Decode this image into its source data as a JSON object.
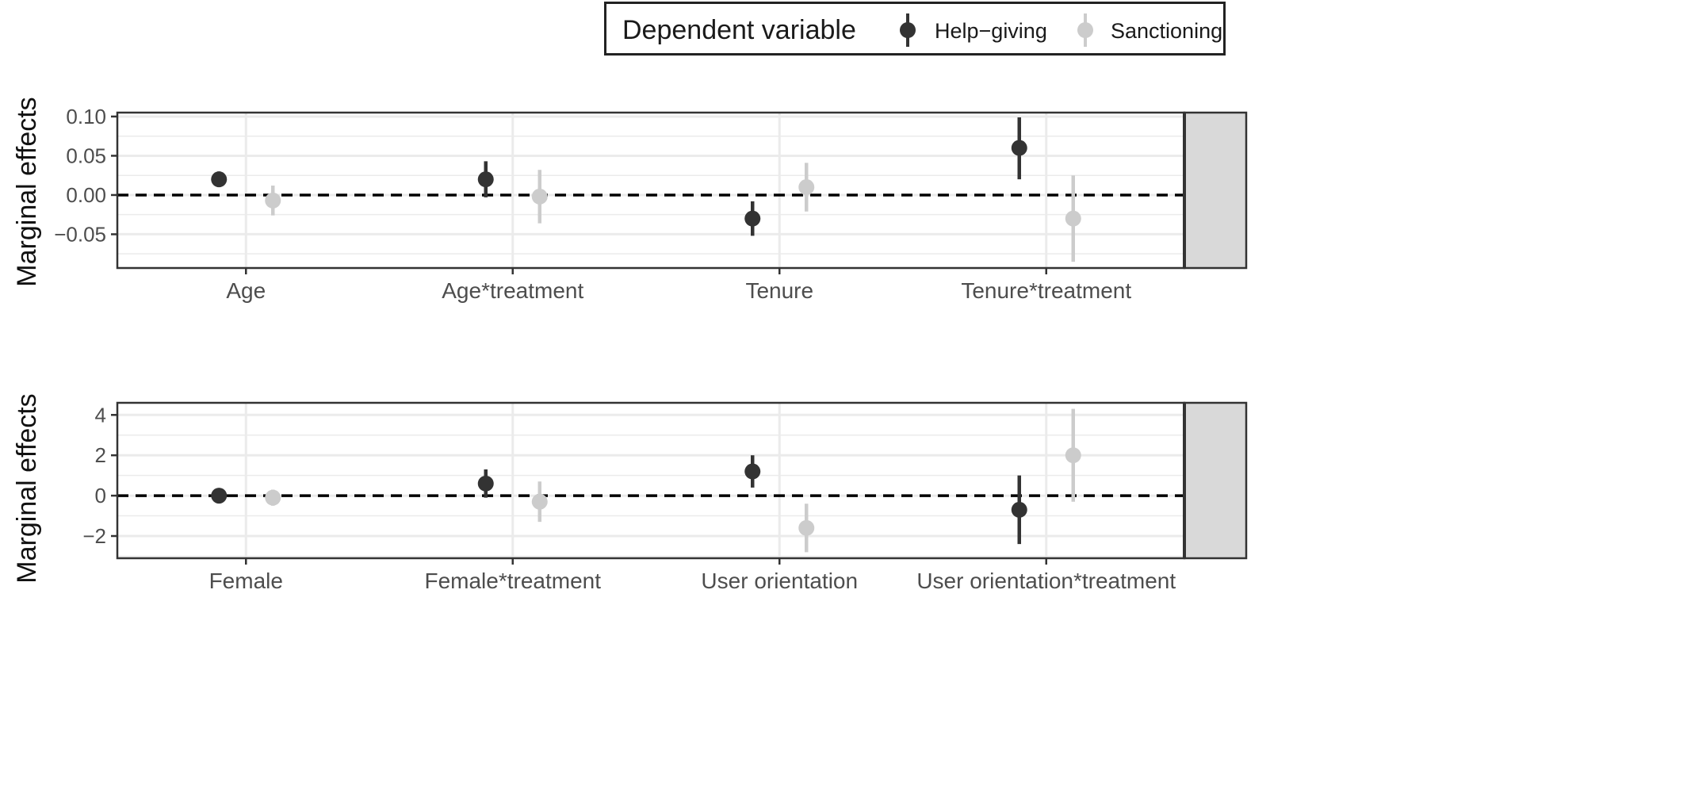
{
  "legend": {
    "title": "Dependent variable",
    "items": [
      {
        "label": "Help−giving",
        "color": "#333333"
      },
      {
        "label": "Sanctioning",
        "color": "#cccccc"
      }
    ]
  },
  "colors": {
    "help_giving": "#333333",
    "sanctioning": "#cccccc",
    "strip": "#d9d9d9",
    "grid": "#ebebeb",
    "refline": "#000000"
  },
  "chart_data": [
    {
      "type": "scatter",
      "ylabel": "Marginal effects",
      "yticks": [
        -0.05,
        0.0,
        0.05,
        0.1
      ],
      "ytick_labels": [
        "−0.05",
        "0.00",
        "0.05",
        "0.10"
      ],
      "ylim": [
        -0.093,
        0.105
      ],
      "reference_line": 0,
      "categories": [
        "Age",
        "Age*treatment",
        "Tenure",
        "Tenure*treatment"
      ],
      "series": [
        {
          "name": "Help−giving",
          "values": [
            0.02,
            0.02,
            -0.03,
            0.06
          ],
          "lower": [
            0.01,
            -0.003,
            -0.052,
            0.02
          ],
          "upper": [
            0.03,
            0.043,
            -0.008,
            0.099
          ]
        },
        {
          "name": "Sanctioning",
          "values": [
            -0.007,
            -0.002,
            0.01,
            -0.03
          ],
          "lower": [
            -0.026,
            -0.036,
            -0.021,
            -0.085
          ],
          "upper": [
            0.012,
            0.032,
            0.041,
            0.025
          ]
        }
      ]
    },
    {
      "type": "scatter",
      "ylabel": "Marginal effects",
      "yticks": [
        -2,
        0,
        2,
        4
      ],
      "ytick_labels": [
        "−2",
        "0",
        "2",
        "4"
      ],
      "ylim": [
        -3.1,
        4.6
      ],
      "reference_line": 0,
      "categories": [
        "Female",
        "Female*treatment",
        "User orientation",
        "User orientation*treatment"
      ],
      "series": [
        {
          "name": "Help−giving",
          "values": [
            0.0,
            0.6,
            1.2,
            -0.7
          ],
          "lower": [
            -0.05,
            -0.1,
            0.4,
            -2.4
          ],
          "upper": [
            0.05,
            1.3,
            2.0,
            1.0
          ]
        },
        {
          "name": "Sanctioning",
          "values": [
            -0.1,
            -0.3,
            -1.6,
            2.0
          ],
          "lower": [
            -0.5,
            -1.3,
            -2.8,
            -0.3
          ],
          "upper": [
            0.3,
            0.7,
            -0.4,
            4.3
          ]
        }
      ]
    }
  ]
}
